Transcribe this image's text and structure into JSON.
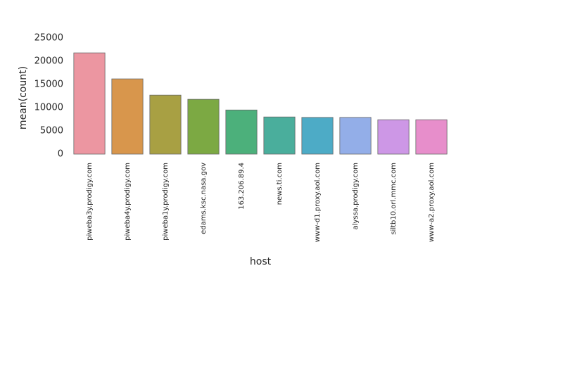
{
  "chart_data": {
    "type": "bar",
    "x_label": "host",
    "y_label": "mean(count)",
    "categories": [
      "piweba3y.prodigy.com",
      "piweba4y.prodigy.com",
      "piweba1y.prodigy.com",
      "edams.ksc.nasa.gov",
      "163.206.89.4",
      "news.ti.com",
      "www-d1.proxy.aol.com",
      "alyssa.prodigy.com",
      "siltb10.orl.mmc.com",
      "www-a2.proxy.aol.com"
    ],
    "values": [
      21800,
      16200,
      12700,
      11800,
      9500,
      8000,
      7900,
      7900,
      7400,
      7400
    ],
    "colors": [
      "#ec96a1",
      "#d8964c",
      "#a8a043",
      "#7ca943",
      "#4cb07b",
      "#4aae9c",
      "#4dabc6",
      "#93aee8",
      "#cd97e6",
      "#e78ecb"
    ],
    "ylim": [
      0,
      25000
    ],
    "yticks": [
      0,
      5000,
      10000,
      15000,
      20000,
      25000
    ],
    "grid": false
  }
}
